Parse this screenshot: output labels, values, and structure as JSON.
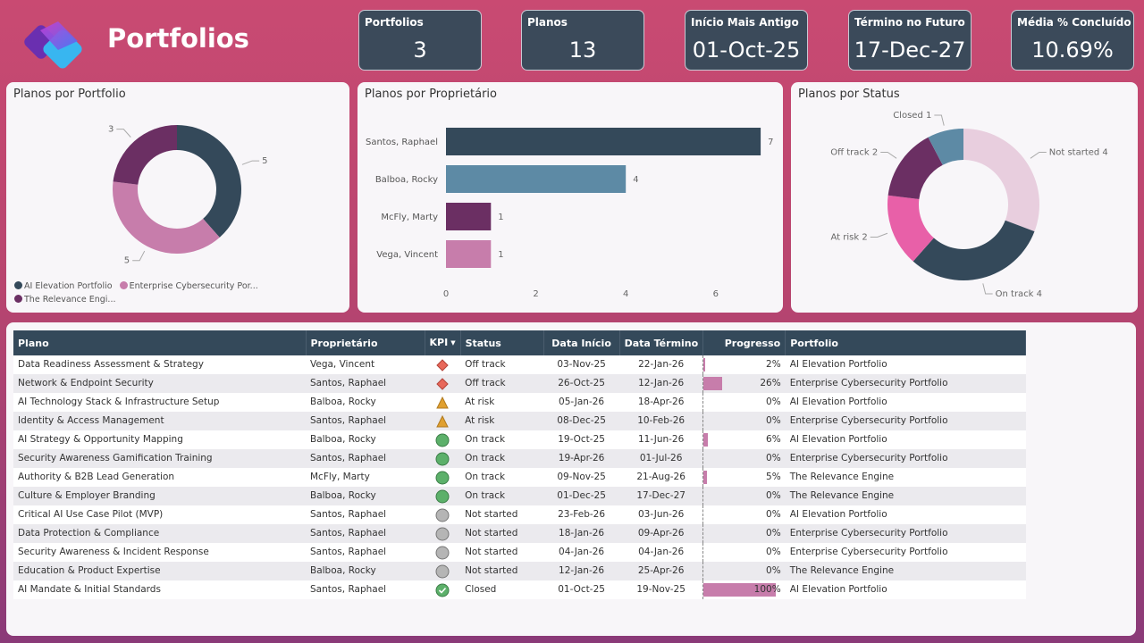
{
  "header": {
    "title": "Portfolios",
    "logo": "planner-logo"
  },
  "kpis": [
    {
      "label": "Portfolios",
      "value": "3"
    },
    {
      "label": "Planos",
      "value": "13"
    },
    {
      "label": "Início Mais Antigo",
      "value": "01-Oct-25"
    },
    {
      "label": "Término no Futuro",
      "value": "17-Dec-27"
    },
    {
      "label": "Média % Concluído",
      "value": "10.69%"
    }
  ],
  "chart_data": [
    {
      "type": "pie",
      "title": "Planos por Portfolio",
      "categories": [
        "AI Elevation Portfolio",
        "Enterprise Cybersecurity Por...",
        "The Relevance Engi..."
      ],
      "values": [
        5,
        5,
        3
      ],
      "colors": [
        "#34495a",
        "#c77dab",
        "#6b2f63"
      ],
      "legend": "bottom"
    },
    {
      "type": "bar",
      "orientation": "horizontal",
      "title": "Planos por Proprietário",
      "categories": [
        "Santos, Raphael",
        "Balboa, Rocky",
        "McFly, Marty",
        "Vega, Vincent"
      ],
      "values": [
        7,
        4,
        1,
        1
      ],
      "colors": [
        "#34495a",
        "#5d8aa5",
        "#6b2f63",
        "#c77dab"
      ],
      "xticks": [
        0,
        2,
        4,
        6
      ],
      "xlim": [
        0,
        7.2
      ]
    },
    {
      "type": "pie",
      "title": "Planos por Status",
      "categories": [
        "Not started",
        "On track",
        "At risk",
        "Off track",
        "Closed"
      ],
      "values": [
        4,
        4,
        2,
        2,
        1
      ],
      "colors": [
        "#e8cede",
        "#34495a",
        "#e860a8",
        "#6b2f63",
        "#5d8aa5"
      ]
    }
  ],
  "table": {
    "headers": [
      "Plano",
      "Proprietário",
      "KPI",
      "Status",
      "Data Início",
      "Data Término",
      "Progresso",
      "Portfolio"
    ],
    "rows": [
      [
        "Data Readiness Assessment & Strategy",
        "Vega, Vincent",
        "diamond-red",
        "Off track",
        "03-Nov-25",
        "22-Jan-26",
        2,
        "AI Elevation Portfolio"
      ],
      [
        "Network & Endpoint Security",
        "Santos, Raphael",
        "diamond-red",
        "Off track",
        "26-Oct-25",
        "12-Jan-26",
        26,
        "Enterprise Cybersecurity Portfolio"
      ],
      [
        "AI Technology Stack & Infrastructure Setup",
        "Balboa, Rocky",
        "triangle-amber",
        "At risk",
        "05-Jan-26",
        "18-Apr-26",
        0,
        "AI Elevation Portfolio"
      ],
      [
        "Identity & Access Management",
        "Santos, Raphael",
        "triangle-amber",
        "At risk",
        "08-Dec-25",
        "10-Feb-26",
        0,
        "Enterprise Cybersecurity Portfolio"
      ],
      [
        "AI Strategy & Opportunity Mapping",
        "Balboa, Rocky",
        "circle-green",
        "On track",
        "19-Oct-25",
        "11-Jun-26",
        6,
        "AI Elevation Portfolio"
      ],
      [
        "Security Awareness Gamification Training",
        "Santos, Raphael",
        "circle-green",
        "On track",
        "19-Apr-26",
        "01-Jul-26",
        0,
        "Enterprise Cybersecurity Portfolio"
      ],
      [
        "Authority & B2B Lead Generation",
        "McFly, Marty",
        "circle-green",
        "On track",
        "09-Nov-25",
        "21-Aug-26",
        5,
        "The Relevance Engine"
      ],
      [
        "Culture & Employer Branding",
        "Balboa, Rocky",
        "circle-green",
        "On track",
        "01-Dec-25",
        "17-Dec-27",
        0,
        "The Relevance Engine"
      ],
      [
        "Critical AI Use Case Pilot (MVP)",
        "Santos, Raphael",
        "circle-gray",
        "Not started",
        "23-Feb-26",
        "03-Jun-26",
        0,
        "AI Elevation Portfolio"
      ],
      [
        "Data Protection & Compliance",
        "Santos, Raphael",
        "circle-gray",
        "Not started",
        "18-Jan-26",
        "09-Apr-26",
        0,
        "Enterprise Cybersecurity Portfolio"
      ],
      [
        "Security Awareness & Incident Response",
        "Santos, Raphael",
        "circle-gray",
        "Not started",
        "04-Jan-26",
        "04-Jan-26",
        0,
        "Enterprise Cybersecurity Portfolio"
      ],
      [
        "Education & Product Expertise",
        "Balboa, Rocky",
        "circle-gray",
        "Not started",
        "12-Jan-26",
        "25-Apr-26",
        0,
        "The Relevance Engine"
      ],
      [
        "AI Mandate & Initial Standards",
        "Santos, Raphael",
        "check-green",
        "Closed",
        "01-Oct-25",
        "19-Nov-25",
        100,
        "AI Elevation Portfolio"
      ]
    ]
  }
}
